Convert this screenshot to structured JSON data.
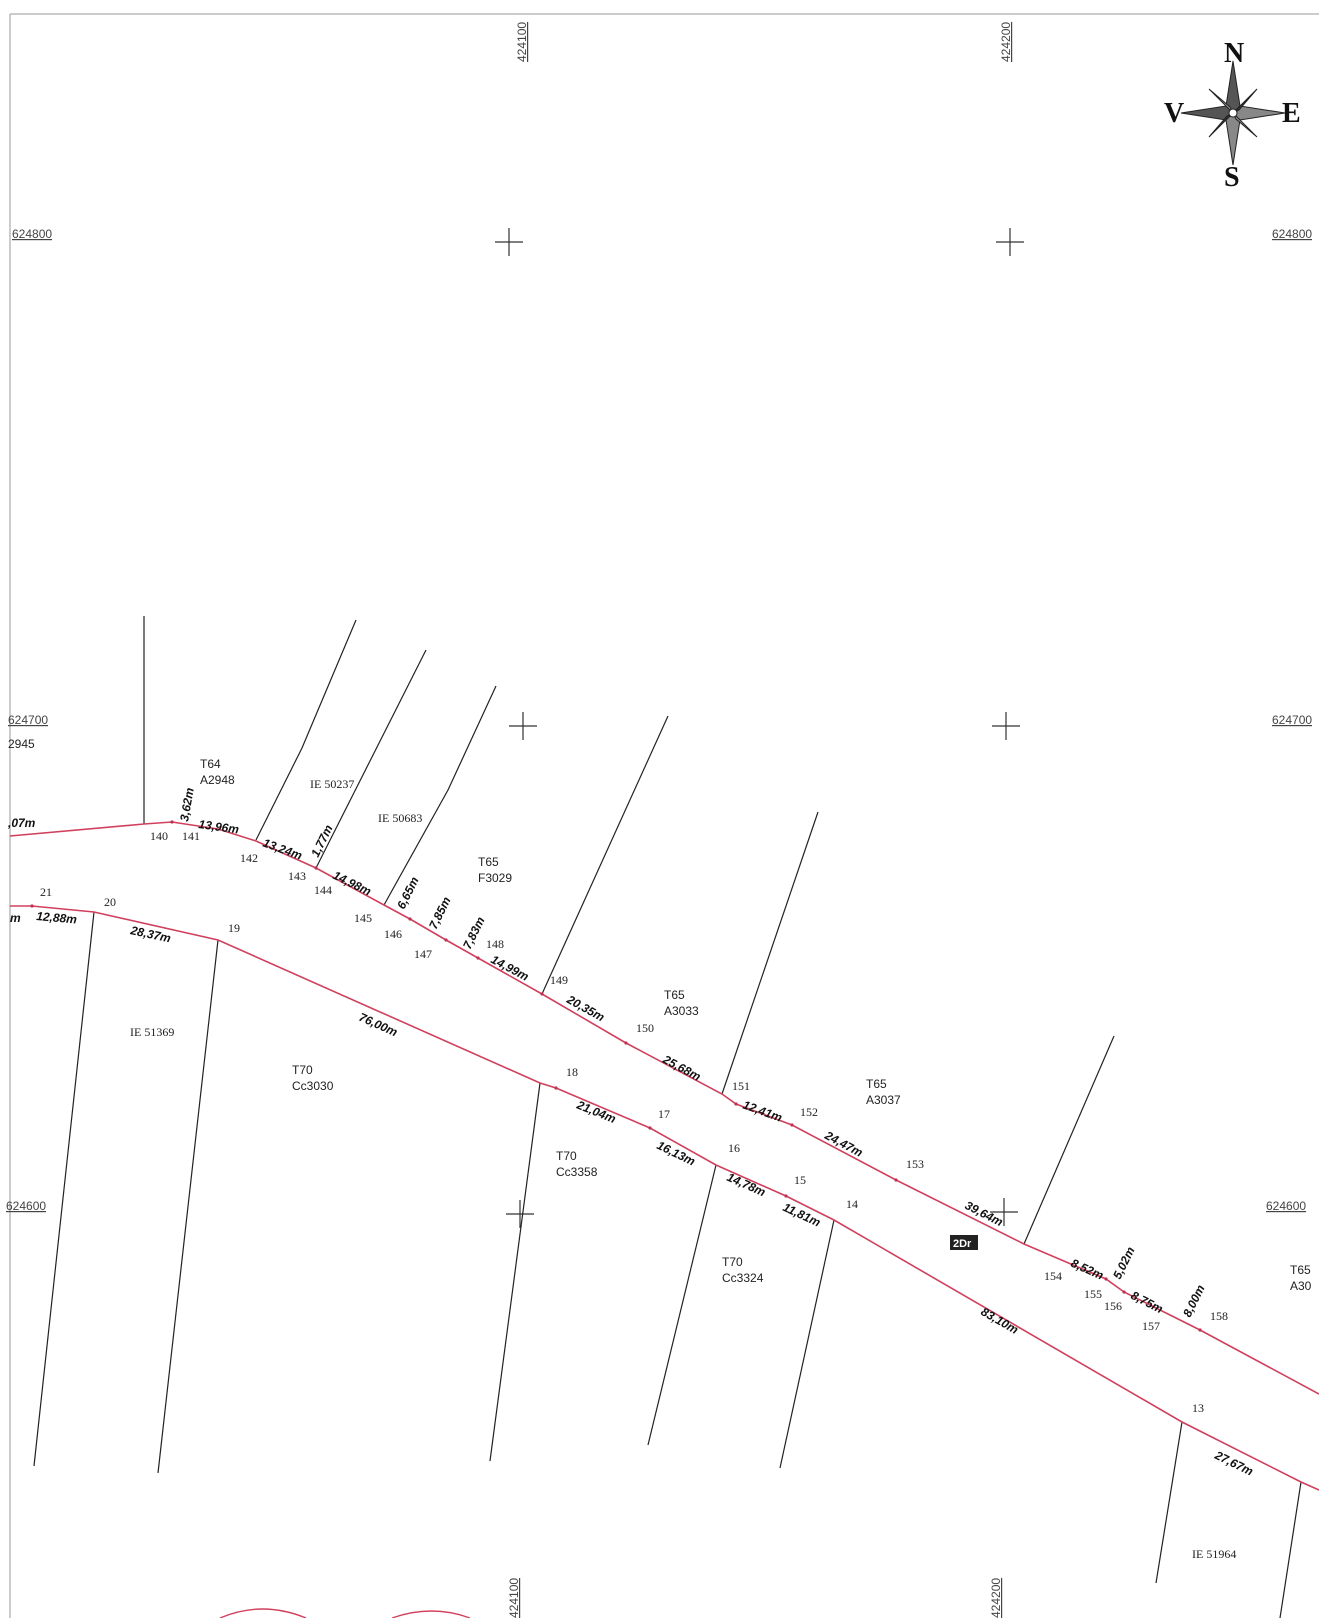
{
  "grid": {
    "easting_top": [
      "424100",
      "424200"
    ],
    "easting_bottom": [
      "424100",
      "424200"
    ],
    "northing_left": [
      "624800",
      "624700",
      "624600"
    ],
    "northing_right": [
      "624800",
      "624700",
      "624600"
    ],
    "edge_left_fragment": "2945",
    "edge_left_measure": ",07m",
    "edge_left_m": "m"
  },
  "compass": {
    "north": "N",
    "south": "S",
    "east": "E",
    "west": "V"
  },
  "road_label": "2Dr",
  "parcels": [
    {
      "line1": "T64",
      "line2": "A2948"
    },
    {
      "line1": "IE 50237",
      "line2": ""
    },
    {
      "line1": "IE 50683",
      "line2": ""
    },
    {
      "line1": "T65",
      "line2": "F3029"
    },
    {
      "line1": "T65",
      "line2": "A3033"
    },
    {
      "line1": "T65",
      "line2": "A3037"
    },
    {
      "line1": "IE 51369",
      "line2": ""
    },
    {
      "line1": "T70",
      "line2": "Cc3030"
    },
    {
      "line1": "T70",
      "line2": "Cc3358"
    },
    {
      "line1": "T70",
      "line2": "Cc3324"
    },
    {
      "line1": "T65",
      "line2": "A30"
    },
    {
      "line1": "IE 51964",
      "line2": ""
    }
  ],
  "point_ids": [
    "140",
    "141",
    "142",
    "143",
    "144",
    "145",
    "146",
    "147",
    "148",
    "149",
    "150",
    "151",
    "152",
    "153",
    "154",
    "155",
    "156",
    "157",
    "158",
    "21",
    "20",
    "19",
    "18",
    "17",
    "16",
    "15",
    "14",
    "13"
  ],
  "measurements": [
    "3,62m",
    "13,96m",
    "13,24m",
    "1,77m",
    "14,98m",
    "6,65m",
    "7,85m",
    "7,83m",
    "14,99m",
    "20,35m",
    "25,68m",
    "12,41m",
    "24,47m",
    "39,64m",
    "8,52m",
    "5,02m",
    "8,75m",
    "8,00m",
    "12,88m",
    "28,37m",
    "76,00m",
    "21,04m",
    "16,13m",
    "14,78m",
    "11,81m",
    "83,10m",
    "27,67m"
  ]
}
